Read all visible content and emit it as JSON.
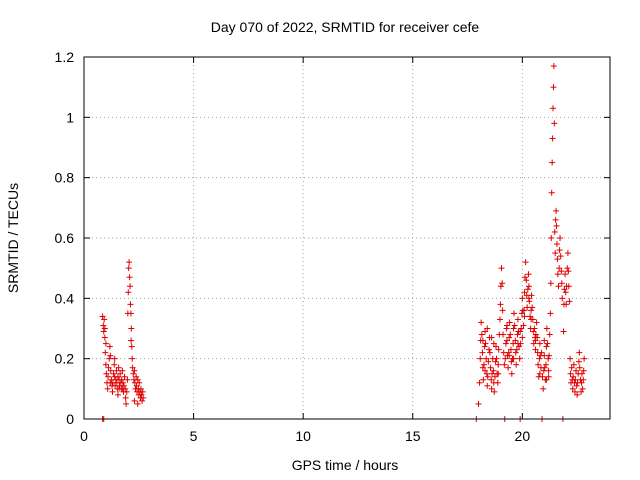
{
  "chart_data": {
    "type": "scatter",
    "title": "Day 070 of 2022, SRMTID for receiver cefe",
    "xlabel": "GPS time / hours",
    "ylabel": "SRMTID / TECUs",
    "xlim": [
      0,
      24
    ],
    "ylim": [
      0,
      1.2
    ],
    "x_ticks": [
      "0",
      "5",
      "10",
      "15",
      "20"
    ],
    "x_tick_values": [
      0,
      5,
      10,
      15,
      20
    ],
    "y_ticks": [
      "0",
      "0.2",
      "0.4",
      "0.6",
      "0.8",
      "1",
      "1.2"
    ],
    "y_tick_values": [
      0,
      0.2,
      0.4,
      0.6,
      0.8,
      1.0,
      1.2
    ],
    "grid": true,
    "marker": "+",
    "color": "#e00000",
    "series": [
      {
        "name": "SRMTID",
        "points": [
          [
            0.85,
            0.34
          ],
          [
            0.88,
            0.31
          ],
          [
            0.9,
            0.29
          ],
          [
            0.92,
            0.33
          ],
          [
            0.95,
            0.27
          ],
          [
            0.97,
            0.22
          ],
          [
            1.0,
            0.18
          ],
          [
            1.02,
            0.15
          ],
          [
            1.05,
            0.12
          ],
          [
            1.08,
            0.1
          ],
          [
            1.1,
            0.14
          ],
          [
            1.12,
            0.17
          ],
          [
            1.15,
            0.2
          ],
          [
            1.18,
            0.24
          ],
          [
            1.2,
            0.21
          ],
          [
            1.22,
            0.16
          ],
          [
            1.25,
            0.13
          ],
          [
            1.28,
            0.11
          ],
          [
            1.3,
            0.09
          ],
          [
            1.32,
            0.12
          ],
          [
            1.35,
            0.15
          ],
          [
            1.38,
            0.18
          ],
          [
            1.4,
            0.14
          ],
          [
            1.42,
            0.11
          ],
          [
            1.45,
            0.13
          ],
          [
            1.48,
            0.16
          ],
          [
            1.5,
            0.12
          ],
          [
            1.52,
            0.1
          ],
          [
            1.55,
            0.14
          ],
          [
            1.58,
            0.17
          ],
          [
            1.6,
            0.13
          ],
          [
            1.62,
            0.11
          ],
          [
            1.65,
            0.15
          ],
          [
            1.68,
            0.12
          ],
          [
            1.7,
            0.1
          ],
          [
            1.72,
            0.13
          ],
          [
            1.75,
            0.16
          ],
          [
            1.78,
            0.12
          ],
          [
            1.8,
            0.09
          ],
          [
            1.82,
            0.11
          ],
          [
            1.85,
            0.14
          ],
          [
            1.88,
            0.1
          ],
          [
            1.9,
            0.07
          ],
          [
            1.92,
            0.05
          ],
          [
            1.95,
            0.09
          ],
          [
            1.98,
            0.13
          ],
          [
            2.0,
            0.35
          ],
          [
            2.02,
            0.42
          ],
          [
            2.04,
            0.5
          ],
          [
            2.06,
            0.52
          ],
          [
            2.08,
            0.47
          ],
          [
            2.1,
            0.44
          ],
          [
            2.12,
            0.38
          ],
          [
            2.14,
            0.35
          ],
          [
            2.16,
            0.3
          ],
          [
            2.18,
            0.24
          ],
          [
            2.2,
            0.2
          ],
          [
            2.22,
            0.17
          ],
          [
            2.25,
            0.15
          ],
          [
            2.28,
            0.13
          ],
          [
            2.3,
            0.16
          ],
          [
            2.32,
            0.12
          ],
          [
            2.35,
            0.1
          ],
          [
            2.38,
            0.14
          ],
          [
            2.4,
            0.11
          ],
          [
            2.42,
            0.09
          ],
          [
            2.45,
            0.13
          ],
          [
            2.48,
            0.1
          ],
          [
            2.5,
            0.08
          ],
          [
            2.52,
            0.12
          ],
          [
            2.55,
            0.09
          ],
          [
            2.58,
            0.07
          ],
          [
            2.6,
            0.1
          ],
          [
            2.62,
            0.08
          ],
          [
            2.65,
            0.06
          ],
          [
            2.68,
            0.09
          ],
          [
            2.7,
            0.07
          ],
          [
            0.85,
            0.0
          ],
          [
            0.9,
            0.0
          ],
          [
            17.9,
            0.0
          ],
          [
            18.0,
            0.05
          ],
          [
            18.05,
            0.12
          ],
          [
            18.08,
            0.2
          ],
          [
            18.1,
            0.26
          ],
          [
            18.12,
            0.32
          ],
          [
            18.15,
            0.28
          ],
          [
            18.18,
            0.22
          ],
          [
            18.2,
            0.17
          ],
          [
            18.22,
            0.13
          ],
          [
            18.25,
            0.18
          ],
          [
            18.28,
            0.24
          ],
          [
            18.3,
            0.29
          ],
          [
            18.32,
            0.25
          ],
          [
            18.35,
            0.2
          ],
          [
            18.38,
            0.15
          ],
          [
            18.4,
            0.11
          ],
          [
            18.42,
            0.14
          ],
          [
            18.45,
            0.19
          ],
          [
            18.48,
            0.23
          ],
          [
            18.5,
            0.27
          ],
          [
            18.52,
            0.22
          ],
          [
            18.55,
            0.17
          ],
          [
            18.58,
            0.13
          ],
          [
            18.6,
            0.1
          ],
          [
            18.62,
            0.15
          ],
          [
            18.65,
            0.2
          ],
          [
            18.68,
            0.16
          ],
          [
            18.7,
            0.12
          ],
          [
            18.72,
            0.09
          ],
          [
            18.75,
            0.14
          ],
          [
            18.78,
            0.19
          ],
          [
            18.8,
            0.24
          ],
          [
            18.82,
            0.2
          ],
          [
            18.85,
            0.15
          ],
          [
            18.88,
            0.12
          ],
          [
            18.9,
            0.18
          ],
          [
            18.92,
            0.23
          ],
          [
            18.95,
            0.28
          ],
          [
            18.98,
            0.33
          ],
          [
            19.0,
            0.38
          ],
          [
            19.02,
            0.44
          ],
          [
            19.05,
            0.5
          ],
          [
            19.08,
            0.45
          ],
          [
            19.1,
            0.36
          ],
          [
            19.12,
            0.28
          ],
          [
            19.15,
            0.22
          ],
          [
            19.18,
            0.18
          ],
          [
            19.2,
            0.0
          ],
          [
            19.22,
            0.2
          ],
          [
            19.25,
            0.25
          ],
          [
            19.28,
            0.3
          ],
          [
            19.3,
            0.26
          ],
          [
            19.32,
            0.21
          ],
          [
            19.35,
            0.17
          ],
          [
            19.38,
            0.22
          ],
          [
            19.4,
            0.27
          ],
          [
            19.42,
            0.32
          ],
          [
            19.45,
            0.28
          ],
          [
            19.48,
            0.23
          ],
          [
            19.5,
            0.19
          ],
          [
            19.52,
            0.15
          ],
          [
            19.55,
            0.2
          ],
          [
            19.58,
            0.25
          ],
          [
            19.6,
            0.3
          ],
          [
            19.62,
            0.35
          ],
          [
            19.65,
            0.31
          ],
          [
            19.68,
            0.26
          ],
          [
            19.7,
            0.22
          ],
          [
            19.72,
            0.18
          ],
          [
            19.75,
            0.23
          ],
          [
            19.78,
            0.28
          ],
          [
            19.8,
            0.33
          ],
          [
            19.82,
            0.29
          ],
          [
            19.85,
            0.24
          ],
          [
            19.88,
            0.2
          ],
          [
            19.9,
            0.0
          ],
          [
            19.92,
            0.25
          ],
          [
            19.95,
            0.3
          ],
          [
            19.98,
            0.35
          ],
          [
            20.0,
            0.4
          ],
          [
            20.02,
            0.36
          ],
          [
            20.05,
            0.31
          ],
          [
            20.08,
            0.36
          ],
          [
            20.1,
            0.42
          ],
          [
            20.12,
            0.47
          ],
          [
            20.15,
            0.52
          ],
          [
            20.18,
            0.46
          ],
          [
            20.2,
            0.41
          ],
          [
            20.22,
            0.37
          ],
          [
            20.25,
            0.43
          ],
          [
            20.28,
            0.48
          ],
          [
            20.3,
            0.44
          ],
          [
            20.32,
            0.39
          ],
          [
            20.35,
            0.34
          ],
          [
            20.38,
            0.3
          ],
          [
            20.4,
            0.36
          ],
          [
            20.42,
            0.41
          ],
          [
            20.45,
            0.37
          ],
          [
            20.48,
            0.33
          ],
          [
            20.5,
            0.29
          ],
          [
            20.52,
            0.25
          ],
          [
            20.55,
            0.3
          ],
          [
            20.58,
            0.27
          ],
          [
            20.6,
            0.23
          ],
          [
            20.62,
            0.28
          ],
          [
            20.65,
            0.32
          ],
          [
            20.68,
            0.27
          ],
          [
            20.7,
            0.22
          ],
          [
            20.72,
            0.18
          ],
          [
            20.75,
            0.14
          ],
          [
            20.78,
            0.2
          ],
          [
            20.8,
            0.25
          ],
          [
            20.82,
            0.21
          ],
          [
            20.85,
            0.17
          ],
          [
            20.88,
            0.22
          ],
          [
            20.9,
            0.0
          ],
          [
            20.92,
            0.14
          ],
          [
            20.95,
            0.1
          ],
          [
            20.98,
            0.16
          ],
          [
            21.0,
            0.21
          ],
          [
            21.02,
            0.17
          ],
          [
            21.05,
            0.13
          ],
          [
            21.08,
            0.18
          ],
          [
            21.1,
            0.24
          ],
          [
            21.12,
            0.3
          ],
          [
            21.15,
            0.25
          ],
          [
            21.18,
            0.2
          ],
          [
            21.2,
            0.16
          ],
          [
            21.22,
            0.21
          ],
          [
            21.25,
            0.28
          ],
          [
            21.28,
            0.35
          ],
          [
            21.3,
            0.45
          ],
          [
            21.32,
            0.6
          ],
          [
            21.34,
            0.75
          ],
          [
            21.36,
            0.85
          ],
          [
            21.38,
            0.93
          ],
          [
            21.4,
            1.03
          ],
          [
            21.42,
            1.1
          ],
          [
            21.44,
            1.17
          ],
          [
            21.46,
            0.98
          ],
          [
            21.48,
            0.62
          ],
          [
            21.5,
            0.55
          ],
          [
            21.52,
            0.66
          ],
          [
            21.54,
            0.69
          ],
          [
            21.56,
            0.64
          ],
          [
            21.58,
            0.58
          ],
          [
            21.6,
            0.53
          ],
          [
            21.62,
            0.48
          ],
          [
            21.65,
            0.44
          ],
          [
            21.68,
            0.5
          ],
          [
            21.7,
            0.56
          ],
          [
            21.72,
            0.6
          ],
          [
            21.75,
            0.54
          ],
          [
            21.78,
            0.49
          ],
          [
            21.8,
            0.45
          ],
          [
            21.82,
            0.4
          ],
          [
            21.85,
            0.0
          ],
          [
            21.88,
            0.29
          ],
          [
            21.9,
            0.38
          ],
          [
            21.92,
            0.43
          ],
          [
            21.95,
            0.48
          ],
          [
            21.98,
            0.42
          ],
          [
            22.0,
            0.38
          ],
          [
            22.02,
            0.44
          ],
          [
            22.05,
            0.5
          ],
          [
            22.08,
            0.55
          ],
          [
            22.1,
            0.49
          ],
          [
            22.12,
            0.44
          ],
          [
            22.15,
            0.39
          ],
          [
            22.18,
            0.2
          ],
          [
            22.2,
            0.15
          ],
          [
            22.22,
            0.12
          ],
          [
            22.25,
            0.17
          ],
          [
            22.28,
            0.13
          ],
          [
            22.3,
            0.1
          ],
          [
            22.32,
            0.14
          ],
          [
            22.35,
            0.18
          ],
          [
            22.38,
            0.12
          ],
          [
            22.4,
            0.09
          ],
          [
            22.42,
            0.13
          ],
          [
            22.45,
            0.16
          ],
          [
            22.48,
            0.11
          ],
          [
            22.5,
            0.08
          ],
          [
            22.52,
            0.12
          ],
          [
            22.55,
            0.15
          ],
          [
            22.58,
            0.19
          ],
          [
            22.6,
            0.22
          ],
          [
            22.62,
            0.17
          ],
          [
            22.65,
            0.13
          ],
          [
            22.68,
            0.09
          ],
          [
            22.7,
            0.12
          ],
          [
            22.72,
            0.15
          ],
          [
            22.75,
            0.1
          ],
          [
            22.78,
            0.13
          ],
          [
            22.8,
            0.16
          ],
          [
            22.82,
            0.2
          ],
          [
            18.2,
            0.26
          ],
          [
            18.4,
            0.3
          ],
          [
            18.6,
            0.27
          ],
          [
            18.9,
            0.15
          ],
          [
            19.3,
            0.31
          ],
          [
            19.6,
            0.2
          ],
          [
            19.8,
            0.25
          ],
          [
            20.0,
            0.27
          ],
          [
            20.3,
            0.4
          ],
          [
            20.6,
            0.26
          ],
          [
            21.0,
            0.26
          ],
          [
            21.2,
            0.14
          ],
          [
            20.4,
            0.33
          ],
          [
            20.1,
            0.34
          ],
          [
            19.9,
            0.29
          ],
          [
            19.4,
            0.21
          ],
          [
            18.7,
            0.25
          ],
          [
            18.3,
            0.16
          ],
          [
            21.1,
            0.13
          ],
          [
            20.8,
            0.15
          ],
          [
            1.2,
            0.12
          ],
          [
            1.4,
            0.2
          ],
          [
            1.6,
            0.1
          ],
          [
            1.0,
            0.25
          ],
          [
            0.95,
            0.3
          ],
          [
            2.3,
            0.06
          ],
          [
            2.45,
            0.05
          ],
          [
            2.15,
            0.26
          ],
          [
            1.75,
            0.1
          ],
          [
            1.55,
            0.08
          ]
        ]
      }
    ]
  }
}
